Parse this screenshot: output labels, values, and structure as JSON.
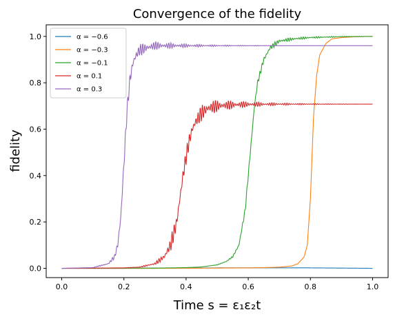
{
  "chart_data": {
    "type": "line",
    "title": "Convergence of the fidelity",
    "xlabel": "Time s = ε₁ε₂t",
    "ylabel": "fidelity",
    "xlim": [
      -0.05,
      1.05
    ],
    "ylim": [
      -0.04,
      1.05
    ],
    "x_ticks": [
      "0.0",
      "0.2",
      "0.4",
      "0.6",
      "0.8",
      "1.0"
    ],
    "y_ticks": [
      "0.0",
      "0.2",
      "0.4",
      "0.6",
      "0.8",
      "1.0"
    ],
    "grid": false,
    "legend_position": "top-left",
    "series": [
      {
        "name": "α = −0.6",
        "color": "#1f77b4",
        "x": [
          0,
          0.1,
          0.2,
          0.3,
          0.4,
          0.5,
          0.6,
          0.7,
          0.8,
          0.9,
          1.0
        ],
        "y": [
          0,
          0,
          0,
          0.001,
          0.001,
          0.002,
          0.002,
          0.002,
          0.002,
          0.001,
          0
        ]
      },
      {
        "name": "α = −0.3",
        "color": "#ff7f0e",
        "x": [
          0,
          0.3,
          0.5,
          0.6,
          0.65,
          0.7,
          0.74,
          0.76,
          0.78,
          0.79,
          0.8,
          0.81,
          0.82,
          0.83,
          0.85,
          0.87,
          0.9,
          0.95,
          1.0
        ],
        "y": [
          0,
          0,
          0.001,
          0.002,
          0.003,
          0.005,
          0.01,
          0.02,
          0.05,
          0.1,
          0.3,
          0.65,
          0.83,
          0.92,
          0.97,
          0.99,
          0.995,
          0.999,
          1.0
        ]
      },
      {
        "name": "α = −0.1",
        "color": "#2ca02c",
        "x": [
          0,
          0.3,
          0.4,
          0.45,
          0.5,
          0.53,
          0.55,
          0.57,
          0.59,
          0.6,
          0.61,
          0.62,
          0.63,
          0.65,
          0.67,
          0.7,
          0.75,
          0.8,
          0.9,
          1.0
        ],
        "y": [
          0,
          0.001,
          0.003,
          0.006,
          0.015,
          0.03,
          0.05,
          0.1,
          0.25,
          0.4,
          0.55,
          0.7,
          0.8,
          0.9,
          0.95,
          0.98,
          0.99,
          0.995,
          0.999,
          1.0
        ],
        "noise": 0.012
      },
      {
        "name": "α = 0.1",
        "color": "#d62728",
        "x": [
          0,
          0.2,
          0.25,
          0.3,
          0.33,
          0.35,
          0.37,
          0.38,
          0.39,
          0.4,
          0.41,
          0.42,
          0.43,
          0.45,
          0.47,
          0.5,
          0.55,
          0.6,
          0.7,
          1.0
        ],
        "y": [
          0,
          0.002,
          0.005,
          0.02,
          0.05,
          0.1,
          0.2,
          0.3,
          0.4,
          0.48,
          0.55,
          0.6,
          0.63,
          0.67,
          0.69,
          0.7,
          0.705,
          0.707,
          0.708,
          0.708
        ],
        "noise": 0.035
      },
      {
        "name": "α = 0.3",
        "color": "#9467bd",
        "x": [
          0,
          0.1,
          0.15,
          0.17,
          0.18,
          0.19,
          0.2,
          0.21,
          0.22,
          0.23,
          0.24,
          0.25,
          0.27,
          0.3,
          0.35,
          0.4,
          0.5,
          0.6,
          0.7,
          0.8,
          1.0
        ],
        "y": [
          0,
          0.003,
          0.02,
          0.05,
          0.1,
          0.22,
          0.45,
          0.68,
          0.82,
          0.89,
          0.92,
          0.94,
          0.95,
          0.96,
          0.96,
          0.96,
          0.96,
          0.96,
          0.96,
          0.96,
          0.96
        ],
        "noise": 0.03
      }
    ]
  }
}
